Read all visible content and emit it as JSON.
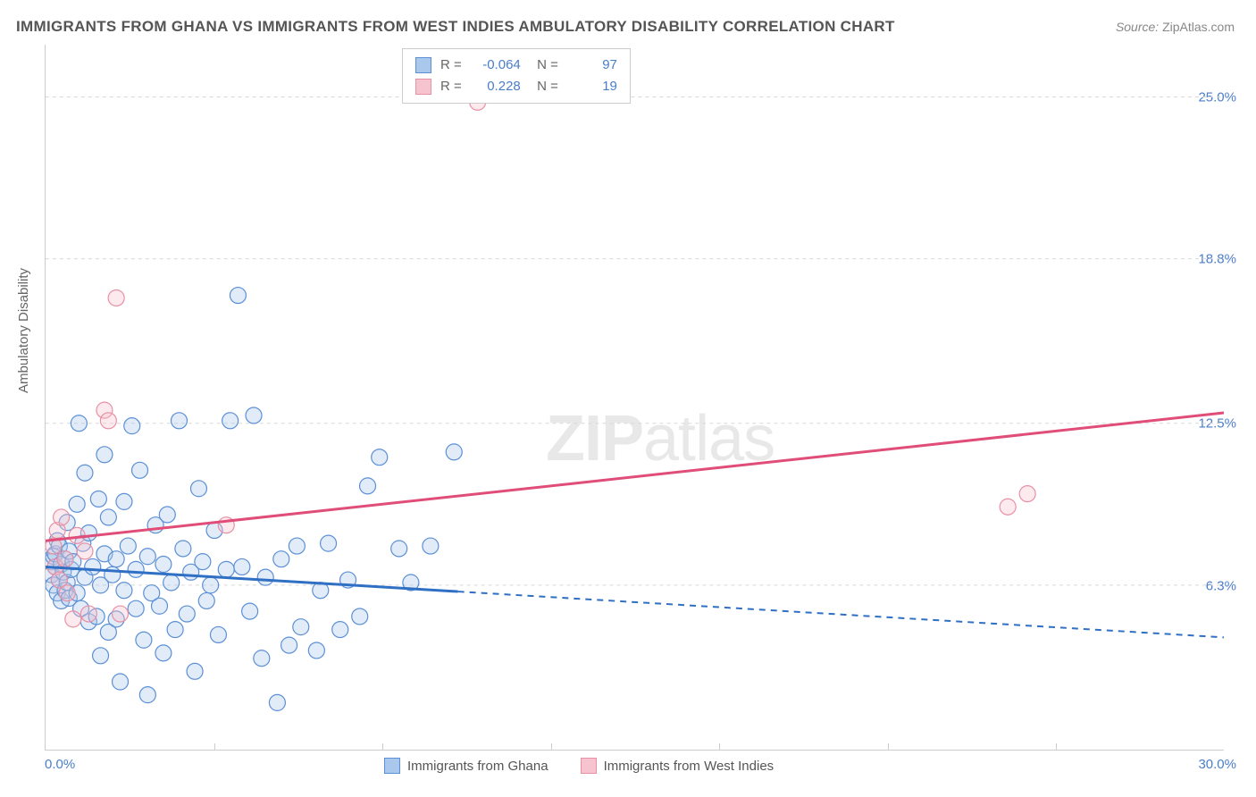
{
  "title": "IMMIGRANTS FROM GHANA VS IMMIGRANTS FROM WEST INDIES AMBULATORY DISABILITY CORRELATION CHART",
  "source_label": "Source:",
  "source_value": "ZipAtlas.com",
  "y_axis_label": "Ambulatory Disability",
  "watermark_a": "ZIP",
  "watermark_b": "atlas",
  "chart": {
    "type": "scatter",
    "xlim": [
      0,
      30
    ],
    "ylim": [
      0,
      27
    ],
    "x_origin_label": "0.0%",
    "x_max_label": "30.0%",
    "y_ticks": [
      {
        "v": 6.3,
        "label": "6.3%"
      },
      {
        "v": 12.5,
        "label": "12.5%"
      },
      {
        "v": 18.8,
        "label": "18.8%"
      },
      {
        "v": 25.0,
        "label": "25.0%"
      }
    ],
    "x_tick_positions": [
      4.29,
      8.57,
      12.86,
      17.14,
      21.43,
      25.71
    ],
    "background_color": "#ffffff",
    "grid_color": "#d8d8d8",
    "marker_radius": 9,
    "series": [
      {
        "key": "ghana",
        "label": "Immigrants from Ghana",
        "fill": "#a9c8ec",
        "stroke": "#5b8fd6",
        "R": "-0.064",
        "N": "97",
        "trend": {
          "color": "#2f6fc4",
          "width": 3,
          "solid_from_x": 0,
          "solid_to_x": 10.5,
          "y_at_x0": 7.0,
          "y_at_x30": 4.3
        },
        "points": [
          [
            0.15,
            7.2
          ],
          [
            0.15,
            6.7
          ],
          [
            0.2,
            7.4
          ],
          [
            0.2,
            6.3
          ],
          [
            0.25,
            7.0
          ],
          [
            0.25,
            7.5
          ],
          [
            0.3,
            6.0
          ],
          [
            0.3,
            8.0
          ],
          [
            0.35,
            6.5
          ],
          [
            0.35,
            7.8
          ],
          [
            0.4,
            7.1
          ],
          [
            0.4,
            5.7
          ],
          [
            0.45,
            6.8
          ],
          [
            0.5,
            7.3
          ],
          [
            0.5,
            6.1
          ],
          [
            0.55,
            8.7
          ],
          [
            0.55,
            6.4
          ],
          [
            0.6,
            7.6
          ],
          [
            0.6,
            5.8
          ],
          [
            0.65,
            6.9
          ],
          [
            0.7,
            7.2
          ],
          [
            0.8,
            9.4
          ],
          [
            0.8,
            6.0
          ],
          [
            0.85,
            12.5
          ],
          [
            0.9,
            5.4
          ],
          [
            0.95,
            7.9
          ],
          [
            1.0,
            10.6
          ],
          [
            1.0,
            6.6
          ],
          [
            1.1,
            8.3
          ],
          [
            1.1,
            4.9
          ],
          [
            1.2,
            7.0
          ],
          [
            1.3,
            5.1
          ],
          [
            1.35,
            9.6
          ],
          [
            1.4,
            6.3
          ],
          [
            1.4,
            3.6
          ],
          [
            1.5,
            7.5
          ],
          [
            1.5,
            11.3
          ],
          [
            1.6,
            4.5
          ],
          [
            1.6,
            8.9
          ],
          [
            1.7,
            6.7
          ],
          [
            1.8,
            7.3
          ],
          [
            1.8,
            5.0
          ],
          [
            1.9,
            2.6
          ],
          [
            2.0,
            6.1
          ],
          [
            2.0,
            9.5
          ],
          [
            2.1,
            7.8
          ],
          [
            2.2,
            12.4
          ],
          [
            2.3,
            5.4
          ],
          [
            2.3,
            6.9
          ],
          [
            2.4,
            10.7
          ],
          [
            2.5,
            4.2
          ],
          [
            2.6,
            7.4
          ],
          [
            2.6,
            2.1
          ],
          [
            2.7,
            6.0
          ],
          [
            2.8,
            8.6
          ],
          [
            2.9,
            5.5
          ],
          [
            3.0,
            7.1
          ],
          [
            3.0,
            3.7
          ],
          [
            3.1,
            9.0
          ],
          [
            3.2,
            6.4
          ],
          [
            3.3,
            4.6
          ],
          [
            3.4,
            12.6
          ],
          [
            3.5,
            7.7
          ],
          [
            3.6,
            5.2
          ],
          [
            3.7,
            6.8
          ],
          [
            3.8,
            3.0
          ],
          [
            3.9,
            10.0
          ],
          [
            4.0,
            7.2
          ],
          [
            4.1,
            5.7
          ],
          [
            4.2,
            6.3
          ],
          [
            4.3,
            8.4
          ],
          [
            4.4,
            4.4
          ],
          [
            4.6,
            6.9
          ],
          [
            4.7,
            12.6
          ],
          [
            4.9,
            17.4
          ],
          [
            5.0,
            7.0
          ],
          [
            5.2,
            5.3
          ],
          [
            5.3,
            12.8
          ],
          [
            5.5,
            3.5
          ],
          [
            5.6,
            6.6
          ],
          [
            5.9,
            1.8
          ],
          [
            6.0,
            7.3
          ],
          [
            6.2,
            4.0
          ],
          [
            6.4,
            7.8
          ],
          [
            6.5,
            4.7
          ],
          [
            6.9,
            3.8
          ],
          [
            7.0,
            6.1
          ],
          [
            7.2,
            7.9
          ],
          [
            7.5,
            4.6
          ],
          [
            7.7,
            6.5
          ],
          [
            8.0,
            5.1
          ],
          [
            8.2,
            10.1
          ],
          [
            8.5,
            11.2
          ],
          [
            9.0,
            7.7
          ],
          [
            9.3,
            6.4
          ],
          [
            9.8,
            7.8
          ],
          [
            10.4,
            11.4
          ]
        ]
      },
      {
        "key": "west_indies",
        "label": "Immigrants from West Indies",
        "fill": "#f6c4ce",
        "stroke": "#e890a4",
        "R": "0.228",
        "N": "19",
        "trend": {
          "color": "#e04d78",
          "width": 3,
          "solid_from_x": 0,
          "solid_to_x": 30,
          "y_at_x0": 8.0,
          "y_at_x30": 12.9
        },
        "points": [
          [
            0.2,
            7.8
          ],
          [
            0.25,
            7.0
          ],
          [
            0.3,
            8.4
          ],
          [
            0.35,
            6.5
          ],
          [
            0.4,
            8.9
          ],
          [
            0.5,
            7.3
          ],
          [
            0.55,
            6.0
          ],
          [
            0.7,
            5.0
          ],
          [
            0.8,
            8.2
          ],
          [
            1.0,
            7.6
          ],
          [
            1.1,
            5.2
          ],
          [
            1.5,
            13.0
          ],
          [
            1.6,
            12.6
          ],
          [
            1.8,
            17.3
          ],
          [
            1.9,
            5.2
          ],
          [
            4.6,
            8.6
          ],
          [
            11.0,
            24.8
          ],
          [
            24.5,
            9.3
          ],
          [
            25.0,
            9.8
          ]
        ]
      }
    ]
  }
}
